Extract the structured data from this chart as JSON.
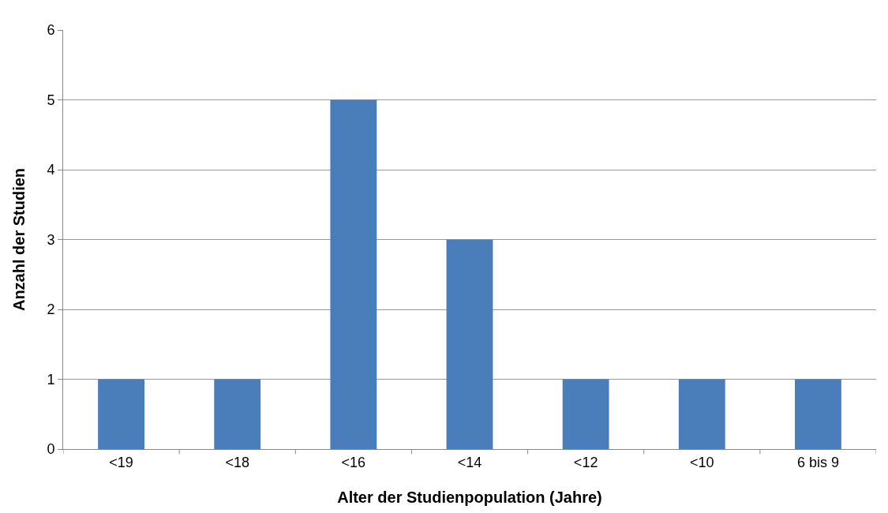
{
  "chart_data": {
    "type": "bar",
    "xlabel": "Alter der Studienpopulation (Jahre)",
    "ylabel": "Anzahl der Studien",
    "categories": [
      "<19",
      "<18",
      "<16",
      "<14",
      "<12",
      "<10",
      "6 bis 9"
    ],
    "values": [
      1,
      1,
      5,
      3,
      1,
      1,
      1
    ],
    "color": "#4a7ebb",
    "ylim": [
      0,
      6
    ],
    "yticks": [
      0,
      1,
      2,
      3,
      4,
      5,
      6
    ],
    "grid": "y",
    "legend": false
  }
}
